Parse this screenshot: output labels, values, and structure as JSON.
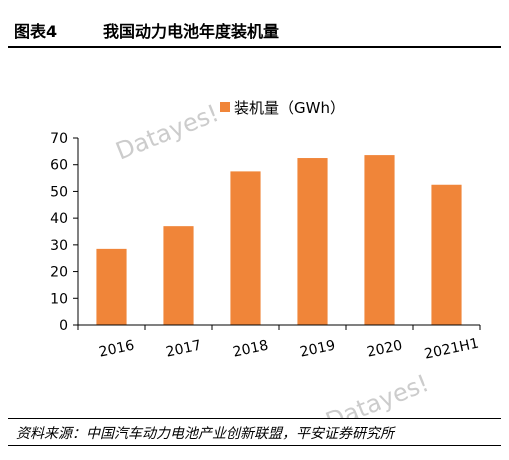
{
  "figure": {
    "label": "图表4",
    "title": "我国动力电池年度装机量",
    "source": "资料来源：中国汽车动力电池产业创新联盟，平安证券研究所",
    "watermark": "Datayes!"
  },
  "colors": {
    "bar": "#f08539",
    "axis": "#000000",
    "watermark": "#cccccc"
  },
  "chart_data": {
    "type": "bar",
    "categories": [
      "2016",
      "2017",
      "2018",
      "2019",
      "2020",
      "2021H1"
    ],
    "series": [
      {
        "name": "装机量（GWh）",
        "values": [
          28.5,
          37,
          57.5,
          62.5,
          63.6,
          52.5
        ]
      }
    ],
    "ylim": [
      0,
      70
    ],
    "yticks": [
      0,
      10,
      20,
      30,
      40,
      50,
      60,
      70
    ],
    "grid": false,
    "legend": "top"
  }
}
